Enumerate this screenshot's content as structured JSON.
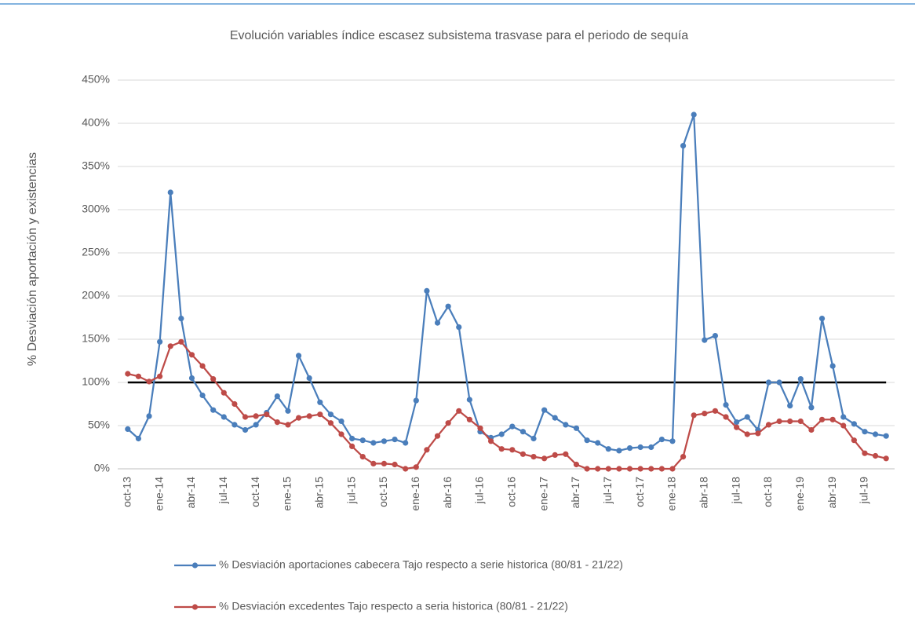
{
  "chart_data": {
    "type": "line",
    "title": "Evolución variables índice escasez subsistema trasvase para el periodo de sequía",
    "y_label": "% Desviación aportación  y existencias",
    "categories": [
      "oct-13",
      null,
      null,
      "ene-14",
      null,
      null,
      "abr-14",
      null,
      null,
      "jul-14",
      null,
      null,
      "oct-14",
      null,
      null,
      "ene-15",
      null,
      null,
      "abr-15",
      null,
      null,
      "jul-15",
      null,
      null,
      "oct-15",
      null,
      null,
      "ene-16",
      null,
      null,
      "abr-16",
      null,
      null,
      "jul-16",
      null,
      null,
      "oct-16",
      null,
      null,
      "ene-17",
      null,
      null,
      "abr-17",
      null,
      null,
      "jul-17",
      null,
      null,
      "oct-17",
      null,
      null,
      "ene-18",
      null,
      null,
      "abr-18",
      null,
      null,
      "jul-18",
      null,
      null,
      "oct-18",
      null,
      null,
      "ene-19",
      null,
      null,
      "abr-19",
      null,
      null,
      "jul-19",
      null,
      null
    ],
    "series": [
      {
        "name": "% Desviación aportaciones cabecera Tajo respecto a serie historica (80/81 - 21/22)",
        "color": "#4a7ebb",
        "values": [
          46,
          35,
          61,
          147,
          320,
          174,
          105,
          85,
          68,
          60,
          51,
          45,
          51,
          65,
          84,
          67,
          131,
          105,
          77,
          63,
          55,
          35,
          33,
          30,
          32,
          34,
          30,
          79,
          206,
          169,
          188,
          164,
          80,
          43,
          36,
          40,
          49,
          43,
          35,
          68,
          59,
          51,
          47,
          33,
          30,
          23,
          21,
          24,
          25,
          25,
          34,
          32,
          374,
          410,
          149,
          154,
          74,
          54,
          60,
          45,
          100,
          100,
          73,
          104,
          71,
          174,
          119,
          60,
          52,
          43,
          40,
          38
        ]
      },
      {
        "name": "% Desviación excedentes Tajo respecto a seria historica (80/81 - 21/22)",
        "color": "#be4b48",
        "values": [
          110,
          107,
          101,
          107,
          142,
          147,
          132,
          119,
          104,
          88,
          75,
          60,
          61,
          63,
          54,
          51,
          59,
          61,
          63,
          53,
          40,
          26,
          14,
          6,
          6,
          5,
          0,
          2,
          22,
          38,
          53,
          67,
          57,
          47,
          32,
          23,
          22,
          17,
          14,
          12,
          16,
          17,
          5,
          0,
          0,
          0,
          0,
          0,
          0,
          0,
          0,
          0,
          14,
          62,
          64,
          67,
          60,
          48,
          40,
          41,
          51,
          55,
          55,
          55,
          45,
          57,
          57,
          50,
          33,
          18,
          15,
          12
        ]
      }
    ],
    "reference_line": 100,
    "reference_color": "#000000",
    "ylim": [
      0,
      450
    ],
    "yticks": [
      {
        "value": 0,
        "label": "0%"
      },
      {
        "value": 50,
        "label": "50%"
      },
      {
        "value": 100,
        "label": "100%"
      },
      {
        "value": 150,
        "label": "150%"
      },
      {
        "value": 200,
        "label": "200%"
      },
      {
        "value": 250,
        "label": "250%"
      },
      {
        "value": 300,
        "label": "300%"
      },
      {
        "value": 350,
        "label": "350%"
      },
      {
        "value": 400,
        "label": "400%"
      },
      {
        "value": 450,
        "label": "450%"
      }
    ],
    "grid": true
  }
}
